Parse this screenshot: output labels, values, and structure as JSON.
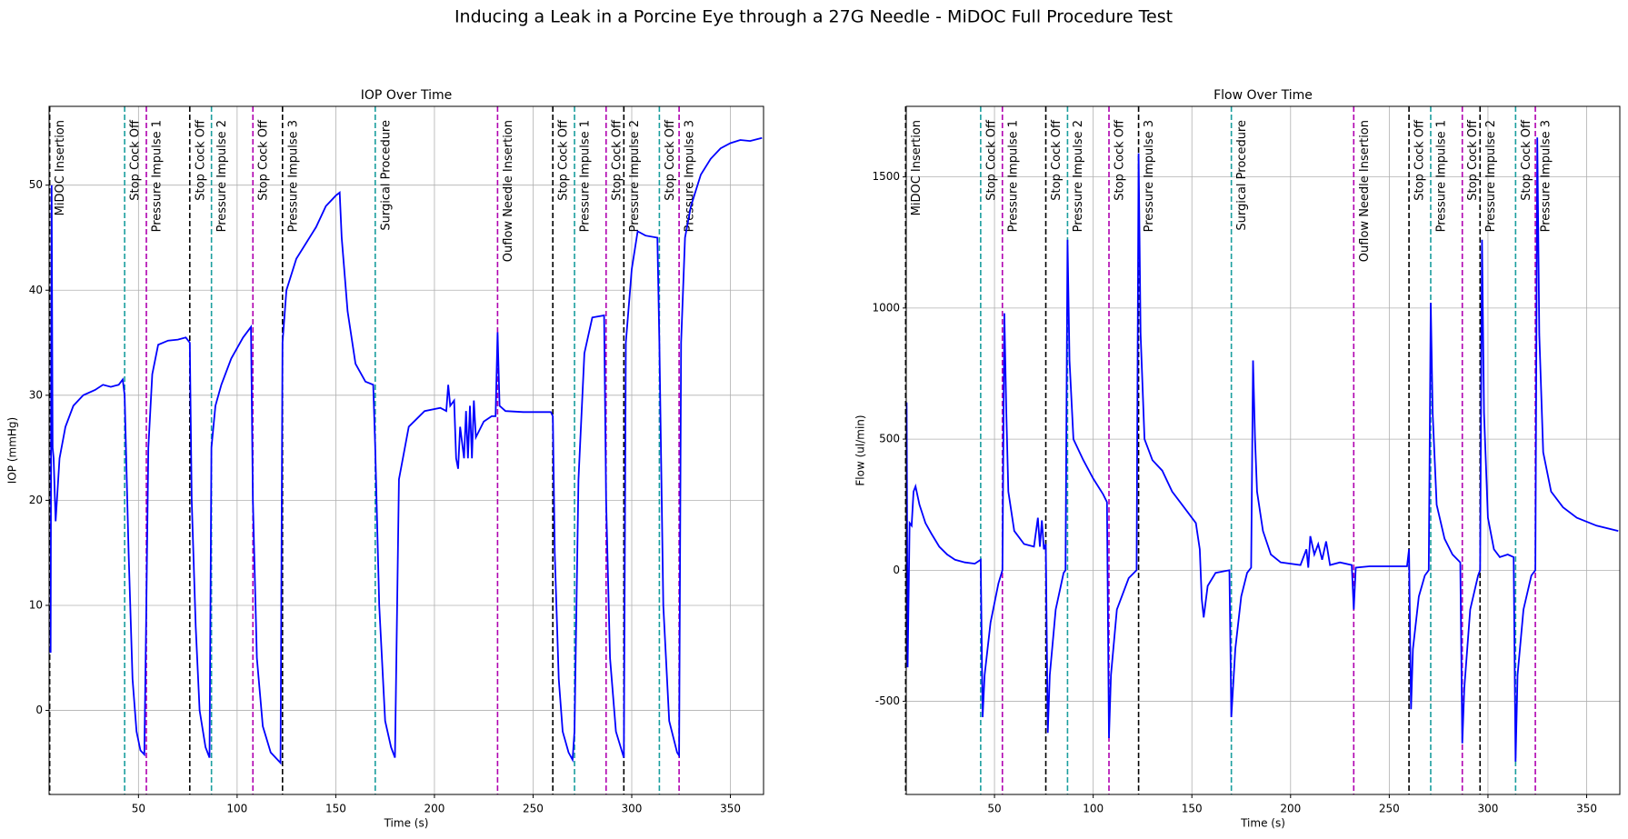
{
  "title": "Inducing a Leak in a Porcine Eye through a 27G Needle - MiDOC Full Procedure Test",
  "chart_data": [
    {
      "type": "line",
      "title": "IOP Over Time",
      "xlabel": "Time (s)",
      "ylabel": "IOP (mmHg)",
      "color": "#0000ff",
      "grid": true,
      "xlim": [
        4.7,
        366.8
      ],
      "ylim": [
        -8,
        57.5
      ],
      "xticks": [
        50,
        100,
        150,
        200,
        250,
        300,
        350
      ],
      "yticks": [
        0,
        10,
        20,
        30,
        40,
        50
      ],
      "x": [
        4.7,
        5.5,
        6,
        6.5,
        7,
        8,
        10,
        13,
        17,
        22,
        28,
        32,
        36,
        40,
        42,
        43,
        45,
        47,
        49,
        51,
        53,
        54,
        55,
        57,
        60,
        65,
        70,
        74,
        76,
        77,
        79,
        81,
        84,
        86,
        87,
        89,
        92,
        97,
        103,
        107,
        108,
        110,
        113,
        117,
        122,
        123,
        125,
        130,
        140,
        145,
        150,
        152,
        153,
        156,
        160,
        165,
        169,
        170,
        172,
        175,
        178,
        180,
        182,
        187,
        195,
        203,
        206,
        207,
        208,
        210,
        211,
        212,
        213,
        215,
        216,
        217,
        218,
        219,
        220,
        221,
        225,
        229,
        231,
        232,
        233,
        236,
        245,
        259,
        260,
        261,
        263,
        265,
        268,
        270,
        271,
        273,
        276,
        280,
        286,
        287,
        289,
        292,
        296,
        297,
        300,
        303,
        307,
        313,
        314,
        316,
        319,
        323,
        324,
        325,
        327,
        330,
        335,
        340,
        345,
        350,
        355,
        360,
        366
      ],
      "values": [
        6,
        5.5,
        50,
        25,
        24,
        18,
        24,
        27,
        29,
        30,
        30.5,
        31,
        30.8,
        31,
        31.5,
        30,
        15,
        3,
        -2,
        -3.8,
        -4.2,
        10,
        25,
        32,
        34.8,
        35.2,
        35.3,
        35.5,
        35,
        20,
        8,
        0,
        -3.5,
        -4.5,
        25,
        29,
        31,
        33.5,
        35.5,
        36.5,
        20,
        5,
        -1.5,
        -4,
        -5,
        35,
        40,
        43,
        46,
        48,
        49,
        49.3,
        45,
        38,
        33,
        31.3,
        31,
        25,
        10,
        -1,
        -3.5,
        -4.5,
        22,
        27,
        28.5,
        28.8,
        28.5,
        31,
        29,
        29.5,
        24,
        23,
        27,
        24,
        28.5,
        24,
        29,
        24,
        29.5,
        26,
        27.5,
        28,
        28,
        36,
        29,
        28.5,
        28.4,
        28.4,
        28,
        15,
        3,
        -2,
        -4,
        -4.7,
        -2,
        22,
        34,
        37.4,
        37.6,
        20,
        5,
        -2,
        -4.5,
        35,
        42,
        45.6,
        45.2,
        45,
        35,
        10,
        -1,
        -4,
        -4.3,
        35,
        45,
        48,
        51,
        52.5,
        53.5,
        54,
        54.3,
        54.2,
        54.5
      ],
      "events": [
        {
          "x": 5,
          "label": "MiDOC Insertion",
          "color": "#000000"
        },
        {
          "x": 43,
          "label": "Stop Cock Off",
          "color": "#1a9e9e"
        },
        {
          "x": 54,
          "label": "Pressure Impulse 1",
          "color": "#b000b0"
        },
        {
          "x": 76,
          "label": "Stop Cock Off",
          "color": "#000000"
        },
        {
          "x": 87,
          "label": "Pressure Impulse 2",
          "color": "#1a9e9e"
        },
        {
          "x": 108,
          "label": "Stop Cock Off",
          "color": "#b000b0"
        },
        {
          "x": 123,
          "label": "Pressure Impulse 3",
          "color": "#000000"
        },
        {
          "x": 170,
          "label": "Surgical Procedure",
          "color": "#1a9e9e"
        },
        {
          "x": 232,
          "label": "Ouflow Needle Insertion",
          "color": "#b000b0"
        },
        {
          "x": 260,
          "label": "Stop Cock Off",
          "color": "#000000"
        },
        {
          "x": 271,
          "label": "Pressure Impulse 1",
          "color": "#1a9e9e"
        },
        {
          "x": 287,
          "label": "Stop Cock Off",
          "color": "#b000b0"
        },
        {
          "x": 296,
          "label": "Pressure Impulse 2",
          "color": "#000000"
        },
        {
          "x": 314,
          "label": "Stop Cock Off",
          "color": "#1a9e9e"
        },
        {
          "x": 324,
          "label": "Pressure Impulse 3",
          "color": "#b000b0"
        }
      ]
    },
    {
      "type": "line",
      "title": "Flow Over Time",
      "xlabel": "Time (s)",
      "ylabel": "Flow (ul/min)",
      "color": "#0000ff",
      "grid": true,
      "xlim": [
        5.3,
        366.8
      ],
      "ylim": [
        -855,
        1769
      ],
      "xticks": [
        50,
        100,
        150,
        200,
        250,
        300,
        350
      ],
      "yticks": [
        -500,
        0,
        500,
        1000,
        1500
      ],
      "x": [
        5.3,
        5.5,
        6,
        7,
        8,
        9,
        10,
        12,
        15,
        18,
        22,
        26,
        30,
        35,
        40,
        42,
        43,
        44,
        45,
        48,
        52,
        54,
        55,
        56,
        57,
        60,
        65,
        70,
        72,
        73,
        74,
        75,
        76,
        77,
        78,
        81,
        85,
        86,
        87,
        88,
        90,
        95,
        100,
        105,
        107,
        108,
        109,
        112,
        118,
        122,
        123,
        124,
        126,
        130,
        135,
        140,
        145,
        150,
        152,
        154,
        155,
        156,
        158,
        162,
        169,
        170,
        172,
        175,
        178,
        180,
        181,
        182,
        183,
        186,
        190,
        195,
        205,
        208,
        209,
        210,
        212,
        214,
        216,
        218,
        220,
        225,
        231,
        232,
        233,
        240,
        259,
        260,
        261,
        262,
        265,
        268,
        270,
        271,
        272,
        274,
        278,
        282,
        286,
        287,
        288,
        291,
        295,
        296,
        297,
        298,
        300,
        303,
        306,
        310,
        313,
        314,
        315,
        318,
        322,
        324,
        325,
        326,
        328,
        332,
        338,
        345,
        355,
        366
      ],
      "values": [
        600,
        640,
        -370,
        180,
        170,
        300,
        320,
        250,
        180,
        140,
        90,
        60,
        40,
        30,
        25,
        35,
        40,
        -560,
        -400,
        -200,
        -50,
        0,
        980,
        600,
        300,
        150,
        100,
        90,
        200,
        90,
        190,
        80,
        100,
        -620,
        -400,
        -150,
        -10,
        0,
        1260,
        800,
        500,
        420,
        350,
        290,
        260,
        -640,
        -400,
        -150,
        -30,
        0,
        1590,
        900,
        500,
        420,
        380,
        300,
        250,
        200,
        180,
        80,
        -110,
        -180,
        -60,
        -10,
        0,
        -560,
        -300,
        -100,
        -10,
        10,
        800,
        500,
        300,
        150,
        60,
        30,
        20,
        80,
        10,
        130,
        60,
        100,
        40,
        110,
        20,
        30,
        20,
        -150,
        10,
        15,
        15,
        80,
        -530,
        -300,
        -100,
        -20,
        0,
        1020,
        600,
        250,
        120,
        60,
        30,
        -660,
        -450,
        -150,
        -20,
        0,
        1260,
        600,
        200,
        80,
        50,
        60,
        50,
        -730,
        -400,
        -150,
        -20,
        0,
        1650,
        900,
        450,
        300,
        240,
        200,
        170,
        150
      ],
      "events": [
        {
          "x": 5,
          "label": "MiDOC Insertion",
          "color": "#000000"
        },
        {
          "x": 43,
          "label": "Stop Cock Off",
          "color": "#1a9e9e"
        },
        {
          "x": 54,
          "label": "Pressure Impulse 1",
          "color": "#b000b0"
        },
        {
          "x": 76,
          "label": "Stop Cock Off",
          "color": "#000000"
        },
        {
          "x": 87,
          "label": "Pressure Impulse 2",
          "color": "#1a9e9e"
        },
        {
          "x": 108,
          "label": "Stop Cock Off",
          "color": "#b000b0"
        },
        {
          "x": 123,
          "label": "Pressure Impulse 3",
          "color": "#000000"
        },
        {
          "x": 170,
          "label": "Surgical Procedure",
          "color": "#1a9e9e"
        },
        {
          "x": 232,
          "label": "Ouflow Needle Insertion",
          "color": "#b000b0"
        },
        {
          "x": 260,
          "label": "Stop Cock Off",
          "color": "#000000"
        },
        {
          "x": 271,
          "label": "Pressure Impulse 1",
          "color": "#1a9e9e"
        },
        {
          "x": 287,
          "label": "Stop Cock Off",
          "color": "#b000b0"
        },
        {
          "x": 296,
          "label": "Pressure Impulse 2",
          "color": "#000000"
        },
        {
          "x": 314,
          "label": "Stop Cock Off",
          "color": "#1a9e9e"
        },
        {
          "x": 324,
          "label": "Pressure Impulse 3",
          "color": "#b000b0"
        }
      ]
    }
  ]
}
